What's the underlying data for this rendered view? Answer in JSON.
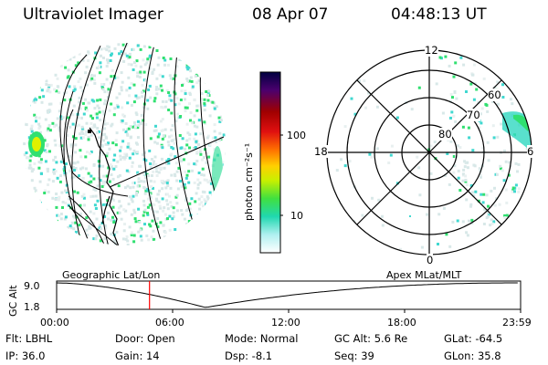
{
  "header": {
    "title": "Ultraviolet Imager",
    "date": "08 Apr 07",
    "time": "04:48:13 UT"
  },
  "colorbar": {
    "unit_label": "photon cm⁻²s⁻¹",
    "ticks": [
      "100",
      "10"
    ],
    "colors": [
      "#000040",
      "#4b006e",
      "#a00000",
      "#e01010",
      "#ff7000",
      "#ffd000",
      "#c8f000",
      "#40e040",
      "#20d8b0",
      "#b0f0f0",
      "#ffffff"
    ]
  },
  "polar": {
    "mlt_labels": {
      "top": "12",
      "left": "18",
      "right": "6",
      "bottom": "0"
    },
    "mlat_labels": [
      "60",
      "70",
      "80"
    ]
  },
  "panel_labels": {
    "left": "Geographic Lat/Lon",
    "right": "Apex MLat/MLT"
  },
  "altitude_plot": {
    "ylabel": "GC Alt",
    "yticks": [
      "9.0",
      "1.8"
    ],
    "xticks": [
      "00:00",
      "06:00",
      "12:00",
      "18:00",
      "23:59"
    ],
    "marker_time": "04:48"
  },
  "params": {
    "flt": "Flt: LBHL",
    "door": "Door: Open",
    "mode": "Mode: Normal",
    "gc_alt": "GC Alt: 5.6 Re",
    "glat": "GLat: -64.5",
    "ip": "IP: 36.0",
    "gain": "Gain: 14",
    "dsp": "Dsp:   -8.1",
    "seq": "Seq: 39",
    "glon": "GLon:  35.8"
  },
  "colors": {
    "accent_marker": "#ff0000",
    "speckle_light": "#d8e8e8",
    "speckle_cyan": "#40d8d0",
    "speckle_green": "#30e070"
  }
}
